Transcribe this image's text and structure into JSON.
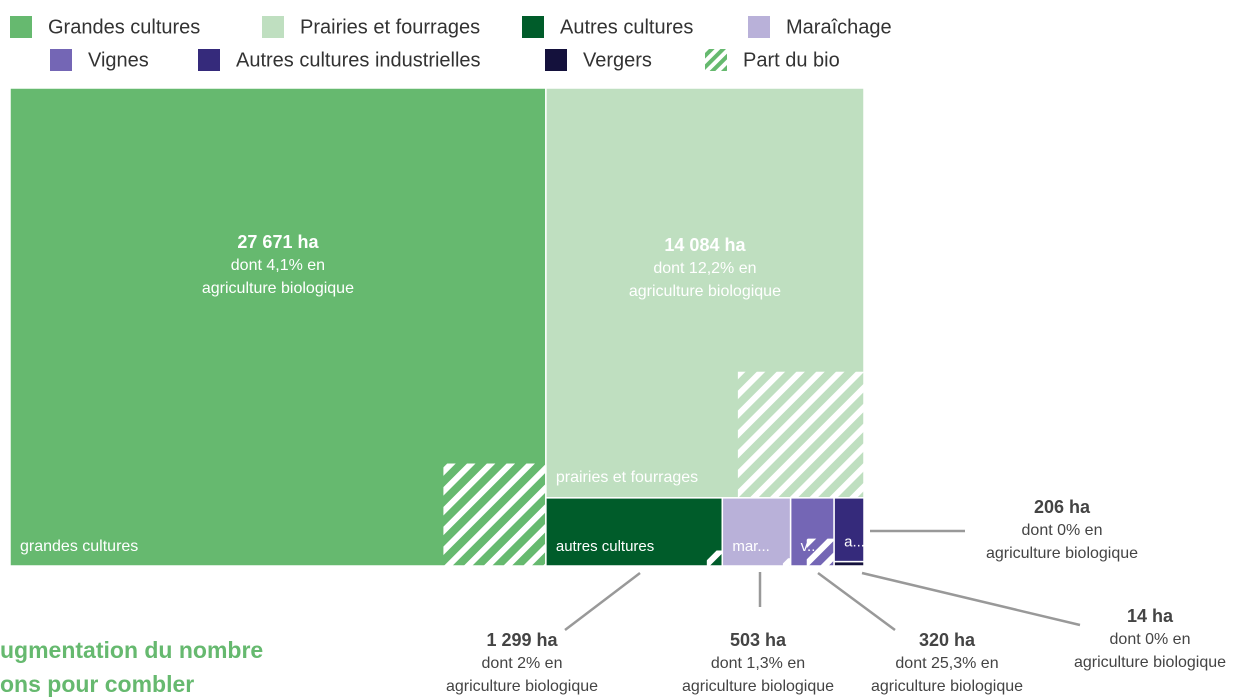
{
  "chart_data": {
    "type": "treemap",
    "categories": [
      "Grandes cultures",
      "Prairies et fourrages",
      "Autres cultures",
      "Maraîchage",
      "Vignes",
      "Autres cultures industrielles",
      "Vergers"
    ],
    "colors": [
      "#66b96f",
      "#bfdfc0",
      "#005c2a",
      "#b9b1d9",
      "#7466b5",
      "#352a7b",
      "#14113c"
    ],
    "values": [
      27671,
      14084,
      1299,
      503,
      320,
      206,
      14
    ],
    "value_labels": [
      "27 671 ha",
      "14 084 ha",
      "1 299 ha",
      "503 ha",
      "320 ha",
      "206 ha",
      "14 ha"
    ],
    "bio_share": [
      4.1,
      12.2,
      2,
      1.3,
      25.3,
      0,
      0
    ],
    "bio_labels": [
      "dont 4,1% en",
      "dont 12,2% en",
      "dont 2% en",
      "dont 1,3% en",
      "dont 25,3% en",
      "dont 0% en",
      "dont 0% en"
    ],
    "bio_suffix": "agriculture biologique",
    "bio_legend": "Part du bio",
    "tile_labels": [
      "grandes cultures",
      "prairies et fourrages",
      "autres cultures",
      "mar...",
      "v...",
      "a...",
      null
    ],
    "page_text": [
      "ugmentation du nombre",
      "ons pour combler"
    ]
  }
}
